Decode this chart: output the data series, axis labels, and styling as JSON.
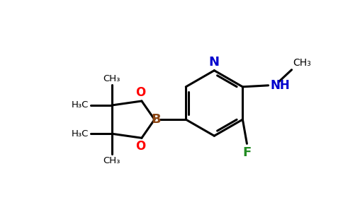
{
  "bg_color": "#ffffff",
  "bond_color": "#000000",
  "N_color": "#0000cd",
  "O_color": "#ff0000",
  "B_color": "#8b4513",
  "F_color": "#228b22",
  "NH_color": "#0000cd",
  "fig_width": 4.84,
  "fig_height": 3.0,
  "dpi": 100,
  "xlim": [
    0,
    12
  ],
  "ylim": [
    0,
    7.4
  ]
}
